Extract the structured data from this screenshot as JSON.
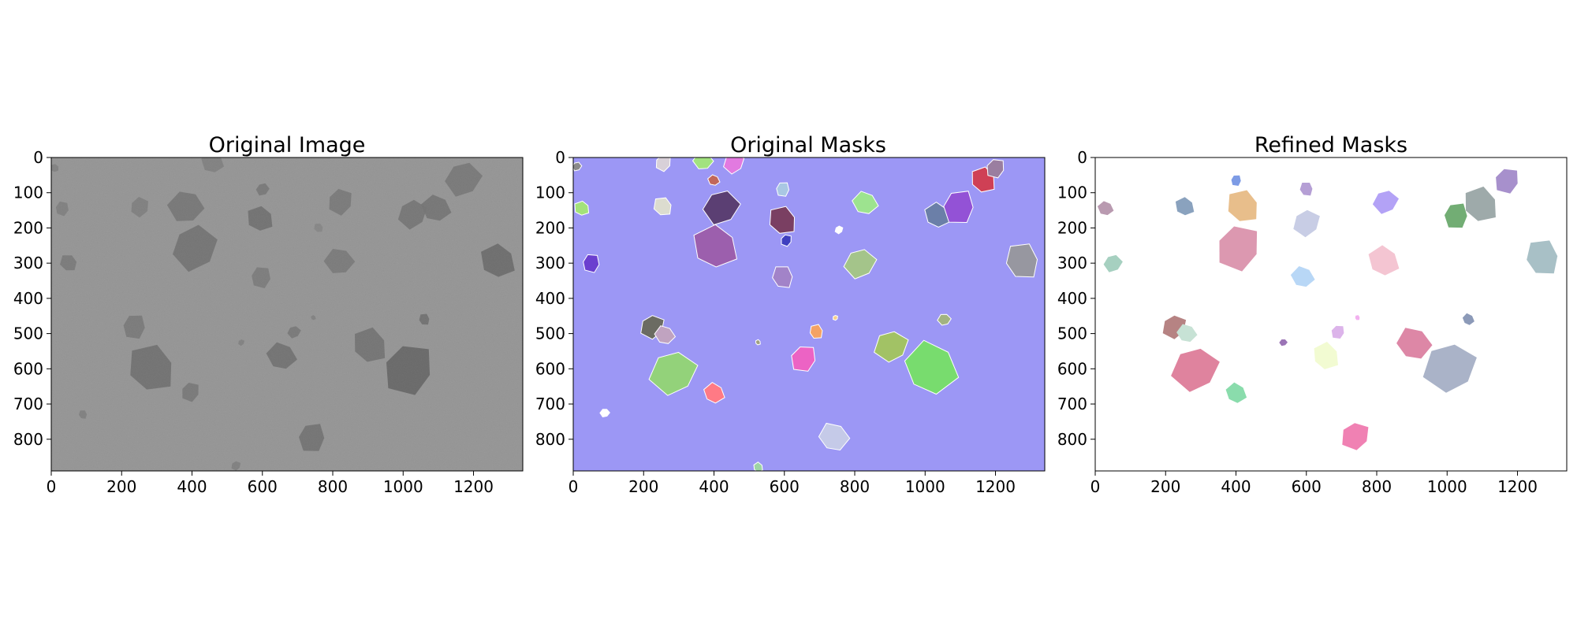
{
  "panels": [
    {
      "title": "Original Image"
    },
    {
      "title": "Original Masks"
    },
    {
      "title": "Refined Masks"
    }
  ],
  "chart_data": [
    {
      "type": "image",
      "title": "Original Image",
      "xlim": [
        0,
        1340
      ],
      "ylim": [
        890,
        0
      ],
      "xticks": [
        0,
        200,
        400,
        600,
        800,
        1000,
        1200
      ],
      "yticks": [
        0,
        100,
        200,
        300,
        400,
        500,
        600,
        700,
        800
      ],
      "background": "#9a9a9a",
      "objects": [
        {
          "x": 10,
          "y": 30,
          "r": 14,
          "color": "#6e6e6e"
        },
        {
          "x": 30,
          "y": 145,
          "r": 22,
          "color": "#6a6a6a"
        },
        {
          "x": 50,
          "y": 300,
          "r": 28,
          "color": "#5e5e5e"
        },
        {
          "x": 250,
          "y": 140,
          "r": 30,
          "color": "#696969"
        },
        {
          "x": 385,
          "y": 140,
          "r": 55,
          "color": "#575757"
        },
        {
          "x": 405,
          "y": 255,
          "r": 70,
          "color": "#4f4f4f"
        },
        {
          "x": 460,
          "y": 15,
          "r": 35,
          "color": "#6c6c6c"
        },
        {
          "x": 600,
          "y": 90,
          "r": 20,
          "color": "#5a5a5a"
        },
        {
          "x": 595,
          "y": 175,
          "r": 42,
          "color": "#4a4a4a"
        },
        {
          "x": 595,
          "y": 340,
          "r": 33,
          "color": "#626262"
        },
        {
          "x": 760,
          "y": 200,
          "r": 15,
          "color": "#787878"
        },
        {
          "x": 820,
          "y": 125,
          "r": 40,
          "color": "#5c5c5c"
        },
        {
          "x": 820,
          "y": 295,
          "r": 45,
          "color": "#5e5e5e"
        },
        {
          "x": 1025,
          "y": 160,
          "r": 45,
          "color": "#555555"
        },
        {
          "x": 1095,
          "y": 145,
          "r": 45,
          "color": "#525252"
        },
        {
          "x": 1170,
          "y": 60,
          "r": 55,
          "color": "#5a5a5a"
        },
        {
          "x": 1270,
          "y": 295,
          "r": 55,
          "color": "#404040"
        },
        {
          "x": 235,
          "y": 480,
          "r": 38,
          "color": "#5d5d5d"
        },
        {
          "x": 285,
          "y": 600,
          "r": 75,
          "color": "#4a4a4a"
        },
        {
          "x": 395,
          "y": 665,
          "r": 30,
          "color": "#5a5a5a"
        },
        {
          "x": 90,
          "y": 730,
          "r": 14,
          "color": "#6a6a6a"
        },
        {
          "x": 540,
          "y": 525,
          "r": 10,
          "color": "#6e6e6e"
        },
        {
          "x": 655,
          "y": 565,
          "r": 45,
          "color": "#4c4c4c"
        },
        {
          "x": 690,
          "y": 495,
          "r": 20,
          "color": "#5a5a5a"
        },
        {
          "x": 745,
          "y": 455,
          "r": 8,
          "color": "#6e6e6e"
        },
        {
          "x": 740,
          "y": 795,
          "r": 45,
          "color": "#4e4e4e"
        },
        {
          "x": 905,
          "y": 535,
          "r": 55,
          "color": "#4f4f4f"
        },
        {
          "x": 1015,
          "y": 600,
          "r": 80,
          "color": "#353535"
        },
        {
          "x": 1060,
          "y": 460,
          "r": 18,
          "color": "#4a4a4a"
        },
        {
          "x": 525,
          "y": 875,
          "r": 15,
          "color": "#6a6a6a"
        }
      ]
    },
    {
      "type": "image",
      "title": "Original Masks",
      "xlim": [
        0,
        1340
      ],
      "ylim": [
        890,
        0
      ],
      "xticks": [
        0,
        200,
        400,
        600,
        800,
        1000,
        1200
      ],
      "yticks": [
        0,
        100,
        200,
        300,
        400,
        500,
        600,
        700,
        800
      ],
      "background": "#9c97f5",
      "objects": [
        {
          "x": 10,
          "y": 25,
          "r": 14,
          "color": "#8a8a8a"
        },
        {
          "x": 25,
          "y": 145,
          "r": 24,
          "color": "#a3e27a"
        },
        {
          "x": 50,
          "y": 300,
          "r": 28,
          "color": "#6b3fcf"
        },
        {
          "x": 255,
          "y": 140,
          "r": 30,
          "color": "#dcdccf"
        },
        {
          "x": 255,
          "y": 15,
          "r": 25,
          "color": "#d8d0d8"
        },
        {
          "x": 370,
          "y": 10,
          "r": 30,
          "color": "#a2e27f"
        },
        {
          "x": 455,
          "y": 15,
          "r": 32,
          "color": "#e27ae0"
        },
        {
          "x": 400,
          "y": 65,
          "r": 18,
          "color": "#c1675b"
        },
        {
          "x": 420,
          "y": 140,
          "r": 55,
          "color": "#5b3f73"
        },
        {
          "x": 405,
          "y": 255,
          "r": 70,
          "color": "#9c5fad"
        },
        {
          "x": 595,
          "y": 90,
          "r": 22,
          "color": "#a9c7e3"
        },
        {
          "x": 595,
          "y": 180,
          "r": 45,
          "color": "#7a3f62"
        },
        {
          "x": 605,
          "y": 235,
          "r": 18,
          "color": "#3f3fc0"
        },
        {
          "x": 595,
          "y": 340,
          "r": 35,
          "color": "#a283c8"
        },
        {
          "x": 755,
          "y": 205,
          "r": 12,
          "color": "#ffffff"
        },
        {
          "x": 830,
          "y": 130,
          "r": 38,
          "color": "#9de38f"
        },
        {
          "x": 815,
          "y": 300,
          "r": 48,
          "color": "#a4c48a"
        },
        {
          "x": 1035,
          "y": 165,
          "r": 40,
          "color": "#6b7fa8"
        },
        {
          "x": 1095,
          "y": 140,
          "r": 52,
          "color": "#9352d6"
        },
        {
          "x": 1165,
          "y": 65,
          "r": 40,
          "color": "#cf4055"
        },
        {
          "x": 1200,
          "y": 30,
          "r": 30,
          "color": "#9a7ea0"
        },
        {
          "x": 1275,
          "y": 295,
          "r": 55,
          "color": "#9797a0"
        },
        {
          "x": 225,
          "y": 480,
          "r": 38,
          "color": "#6b6b62"
        },
        {
          "x": 260,
          "y": 505,
          "r": 30,
          "color": "#c0a3c0"
        },
        {
          "x": 285,
          "y": 610,
          "r": 72,
          "color": "#93d27a"
        },
        {
          "x": 400,
          "y": 670,
          "r": 32,
          "color": "#ff7a85"
        },
        {
          "x": 90,
          "y": 725,
          "r": 14,
          "color": "#ffffff"
        },
        {
          "x": 525,
          "y": 525,
          "r": 8,
          "color": "#a0a080"
        },
        {
          "x": 655,
          "y": 570,
          "r": 42,
          "color": "#ec63c4"
        },
        {
          "x": 690,
          "y": 495,
          "r": 22,
          "color": "#f4a265"
        },
        {
          "x": 745,
          "y": 455,
          "r": 8,
          "color": "#f7d08a"
        },
        {
          "x": 740,
          "y": 795,
          "r": 45,
          "color": "#c5cae8"
        },
        {
          "x": 905,
          "y": 535,
          "r": 52,
          "color": "#a2c265"
        },
        {
          "x": 1015,
          "y": 600,
          "r": 82,
          "color": "#78dc6e"
        },
        {
          "x": 1055,
          "y": 460,
          "r": 20,
          "color": "#a2b382"
        },
        {
          "x": 525,
          "y": 880,
          "r": 15,
          "color": "#9ed4a5"
        }
      ]
    },
    {
      "type": "image",
      "title": "Refined Masks",
      "xlim": [
        0,
        1340
      ],
      "ylim": [
        890,
        0
      ],
      "xticks": [
        0,
        200,
        400,
        600,
        800,
        1000,
        1200
      ],
      "yticks": [
        0,
        100,
        200,
        300,
        400,
        500,
        600,
        700,
        800
      ],
      "background": "#ffffff",
      "objects": [
        {
          "x": 30,
          "y": 145,
          "r": 24,
          "color": "#b99ab0"
        },
        {
          "x": 50,
          "y": 300,
          "r": 28,
          "color": "#a6d0c0"
        },
        {
          "x": 255,
          "y": 140,
          "r": 30,
          "color": "#8aa2be"
        },
        {
          "x": 400,
          "y": 65,
          "r": 17,
          "color": "#7d9be5"
        },
        {
          "x": 420,
          "y": 140,
          "r": 52,
          "color": "#e8be8b"
        },
        {
          "x": 405,
          "y": 255,
          "r": 70,
          "color": "#dc98b0"
        },
        {
          "x": 600,
          "y": 90,
          "r": 22,
          "color": "#b59fd5"
        },
        {
          "x": 600,
          "y": 185,
          "r": 42,
          "color": "#c8cde5"
        },
        {
          "x": 590,
          "y": 340,
          "r": 35,
          "color": "#b8d7f6"
        },
        {
          "x": 825,
          "y": 125,
          "r": 38,
          "color": "#b3a2f6"
        },
        {
          "x": 820,
          "y": 295,
          "r": 48,
          "color": "#f4c5d2"
        },
        {
          "x": 1025,
          "y": 165,
          "r": 40,
          "color": "#72ad74"
        },
        {
          "x": 1095,
          "y": 135,
          "r": 55,
          "color": "#9eaaaa"
        },
        {
          "x": 1170,
          "y": 65,
          "r": 40,
          "color": "#a790cc"
        },
        {
          "x": 1270,
          "y": 285,
          "r": 55,
          "color": "#a8c0c6"
        },
        {
          "x": 225,
          "y": 480,
          "r": 38,
          "color": "#b68383"
        },
        {
          "x": 260,
          "y": 500,
          "r": 30,
          "color": "#c7e2d5"
        },
        {
          "x": 285,
          "y": 600,
          "r": 72,
          "color": "#df839e"
        },
        {
          "x": 400,
          "y": 670,
          "r": 32,
          "color": "#8adcac"
        },
        {
          "x": 535,
          "y": 525,
          "r": 12,
          "color": "#9b74b6"
        },
        {
          "x": 655,
          "y": 565,
          "r": 42,
          "color": "#f2fbd2"
        },
        {
          "x": 690,
          "y": 495,
          "r": 22,
          "color": "#dcb4ea"
        },
        {
          "x": 745,
          "y": 455,
          "r": 8,
          "color": "#f2b1ef"
        },
        {
          "x": 740,
          "y": 790,
          "r": 45,
          "color": "#f081b3"
        },
        {
          "x": 905,
          "y": 530,
          "r": 52,
          "color": "#dd87a6"
        },
        {
          "x": 1010,
          "y": 595,
          "r": 82,
          "color": "#aab3c8"
        },
        {
          "x": 1060,
          "y": 460,
          "r": 18,
          "color": "#8c9ab8"
        }
      ]
    }
  ]
}
